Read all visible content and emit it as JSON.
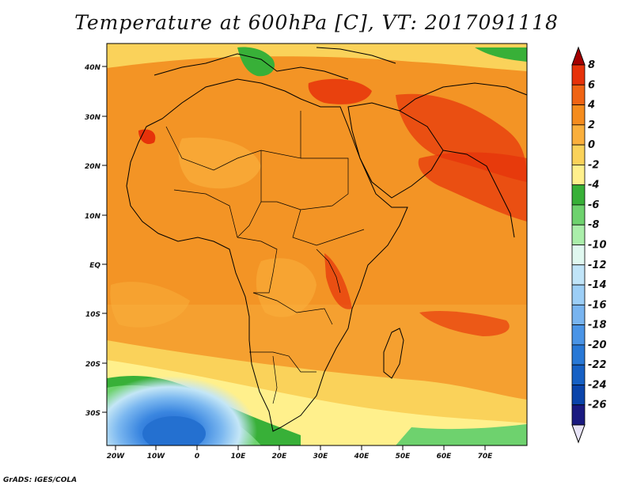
{
  "title": "Temperature at 600hPa [C], VT: 2017091118",
  "footer": "GrADS: IGES/COLA",
  "map": {
    "lat_ticks": [
      "40N",
      "30N",
      "20N",
      "10N",
      "EQ",
      "10S",
      "20S",
      "30S"
    ],
    "lon_ticks": [
      "20W",
      "10W",
      "0",
      "10E",
      "20E",
      "30E",
      "40E",
      "50E",
      "60E",
      "70E"
    ]
  },
  "colorbar": {
    "labels": [
      "8",
      "6",
      "4",
      "2",
      "0",
      "-2",
      "-4",
      "-6",
      "-8",
      "-10",
      "-12",
      "-14",
      "-16",
      "-18",
      "-20",
      "-22",
      "-24",
      "-26"
    ],
    "colors": [
      "#a50000",
      "#e6320a",
      "#f06414",
      "#f58c1e",
      "#faaf3c",
      "#fad25a",
      "#fff08c",
      "#38b038",
      "#6ed26e",
      "#aaeeaa",
      "#e0f8f0",
      "#c0e4f8",
      "#9ccef6",
      "#78b4f0",
      "#4a94e6",
      "#2878d6",
      "#1660c4",
      "#0a44aa",
      "#1a1a80",
      "#e8e4f8"
    ]
  }
}
